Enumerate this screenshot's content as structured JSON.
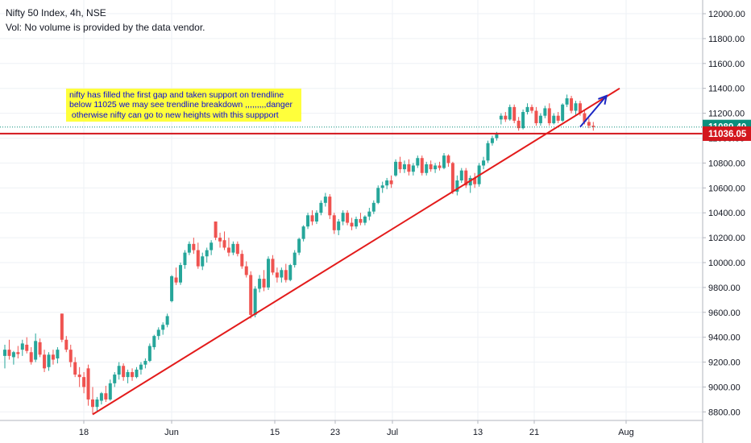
{
  "header": {
    "title": "Nifty 50 Index, 4h, NSE",
    "volume_note": "Vol: No volume is provided by the data vendor."
  },
  "annotation": {
    "text": "nifty has filled the first gap and taken support on trendline\nbelow 11025 we may see trendline breakdown ,,,,,,,,,danger\n otherwise nifty can go to new heights with this suppport",
    "background": "#ffff3b",
    "text_color": "#0a0ad6"
  },
  "price_labels": [
    {
      "value": 11089.4,
      "text": "11089.40",
      "color": "#0b8f7d"
    },
    {
      "value": 11036.05,
      "text": "11036.05",
      "color": "#d3161d"
    }
  ],
  "colors": {
    "up": "#26a69a",
    "down": "#ef5350",
    "trendline": "#e31b1b",
    "horizontal_line": "#d3161d",
    "arrow": "#1b27c4",
    "grid": "#eef1f5"
  },
  "chart_data": {
    "type": "candlestick",
    "title": "Nifty 50 Index, 4h, NSE",
    "ylim": [
      8700,
      12100
    ],
    "y_ticks": [
      "12000.00",
      "11800.00",
      "11600.00",
      "11400.00",
      "11200.00",
      "11000.00",
      "10800.00",
      "10600.00",
      "10400.00",
      "10200.00",
      "10000.00",
      "9800.00",
      "9600.00",
      "9400.00",
      "9200.00",
      "9000.00",
      "8800.00"
    ],
    "x_labels": [
      "18",
      "Jun",
      "15",
      "23",
      "Jul",
      "13",
      "21",
      "Aug"
    ],
    "grid": true,
    "candles": [
      {
        "o": 9250,
        "h": 9340,
        "l": 9150,
        "c": 9300
      },
      {
        "o": 9300,
        "h": 9380,
        "l": 9220,
        "c": 9250
      },
      {
        "o": 9240,
        "h": 9290,
        "l": 9180,
        "c": 9280
      },
      {
        "o": 9280,
        "h": 9330,
        "l": 9230,
        "c": 9265
      },
      {
        "o": 9300,
        "h": 9380,
        "l": 9250,
        "c": 9350
      },
      {
        "o": 9340,
        "h": 9400,
        "l": 9270,
        "c": 9290
      },
      {
        "o": 9280,
        "h": 9320,
        "l": 9180,
        "c": 9200
      },
      {
        "o": 9220,
        "h": 9430,
        "l": 9200,
        "c": 9370
      },
      {
        "o": 9360,
        "h": 9390,
        "l": 9240,
        "c": 9260
      },
      {
        "o": 9260,
        "h": 9300,
        "l": 9120,
        "c": 9150
      },
      {
        "o": 9160,
        "h": 9280,
        "l": 9130,
        "c": 9260
      },
      {
        "o": 9260,
        "h": 9300,
        "l": 9180,
        "c": 9220
      },
      {
        "o": 9230,
        "h": 9320,
        "l": 9190,
        "c": 9300
      },
      {
        "o": 9590,
        "h": 9590,
        "l": 9360,
        "c": 9380
      },
      {
        "o": 9380,
        "h": 9410,
        "l": 9280,
        "c": 9300
      },
      {
        "o": 9300,
        "h": 9340,
        "l": 9160,
        "c": 9200
      },
      {
        "o": 9200,
        "h": 9240,
        "l": 9080,
        "c": 9100
      },
      {
        "o": 9100,
        "h": 9160,
        "l": 9000,
        "c": 9080
      },
      {
        "o": 9080,
        "h": 9120,
        "l": 8950,
        "c": 9000
      },
      {
        "o": 9150,
        "h": 9180,
        "l": 8850,
        "c": 8900
      },
      {
        "o": 8900,
        "h": 9000,
        "l": 8780,
        "c": 8840
      },
      {
        "o": 8840,
        "h": 8920,
        "l": 8800,
        "c": 8900
      },
      {
        "o": 8890,
        "h": 8960,
        "l": 8860,
        "c": 8950
      },
      {
        "o": 8950,
        "h": 9010,
        "l": 8880,
        "c": 8900
      },
      {
        "o": 8900,
        "h": 9060,
        "l": 8890,
        "c": 9030
      },
      {
        "o": 9030,
        "h": 9120,
        "l": 9000,
        "c": 9100
      },
      {
        "o": 9100,
        "h": 9200,
        "l": 9060,
        "c": 9170
      },
      {
        "o": 9170,
        "h": 9190,
        "l": 9050,
        "c": 9080
      },
      {
        "o": 9080,
        "h": 9140,
        "l": 9030,
        "c": 9120
      },
      {
        "o": 9120,
        "h": 9150,
        "l": 9050,
        "c": 9080
      },
      {
        "o": 9080,
        "h": 9160,
        "l": 9070,
        "c": 9140
      },
      {
        "o": 9140,
        "h": 9200,
        "l": 9100,
        "c": 9180
      },
      {
        "o": 9180,
        "h": 9230,
        "l": 9150,
        "c": 9210
      },
      {
        "o": 9210,
        "h": 9350,
        "l": 9200,
        "c": 9330
      },
      {
        "o": 9320,
        "h": 9420,
        "l": 9300,
        "c": 9410
      },
      {
        "o": 9410,
        "h": 9480,
        "l": 9380,
        "c": 9460
      },
      {
        "o": 9460,
        "h": 9520,
        "l": 9420,
        "c": 9500
      },
      {
        "o": 9500,
        "h": 9590,
        "l": 9480,
        "c": 9570
      },
      {
        "o": 9690,
        "h": 9900,
        "l": 9680,
        "c": 9890
      },
      {
        "o": 9880,
        "h": 9960,
        "l": 9820,
        "c": 9840
      },
      {
        "o": 9840,
        "h": 10000,
        "l": 9820,
        "c": 9980
      },
      {
        "o": 9980,
        "h": 10100,
        "l": 9950,
        "c": 10080
      },
      {
        "o": 10080,
        "h": 10170,
        "l": 10060,
        "c": 10150
      },
      {
        "o": 10150,
        "h": 10200,
        "l": 10070,
        "c": 10100
      },
      {
        "o": 10100,
        "h": 10160,
        "l": 9950,
        "c": 9970
      },
      {
        "o": 9970,
        "h": 10080,
        "l": 9940,
        "c": 10050
      },
      {
        "o": 10050,
        "h": 10120,
        "l": 10000,
        "c": 10100
      },
      {
        "o": 10100,
        "h": 10180,
        "l": 10060,
        "c": 10160
      },
      {
        "o": 10330,
        "h": 10330,
        "l": 10180,
        "c": 10200
      },
      {
        "o": 10200,
        "h": 10240,
        "l": 10120,
        "c": 10170
      },
      {
        "o": 10180,
        "h": 10250,
        "l": 10100,
        "c": 10120
      },
      {
        "o": 10120,
        "h": 10200,
        "l": 10050,
        "c": 10080
      },
      {
        "o": 10080,
        "h": 10170,
        "l": 10060,
        "c": 10150
      },
      {
        "o": 10150,
        "h": 10170,
        "l": 10050,
        "c": 10070
      },
      {
        "o": 10070,
        "h": 10100,
        "l": 9950,
        "c": 9970
      },
      {
        "o": 9970,
        "h": 10010,
        "l": 9880,
        "c": 9900
      },
      {
        "o": 9900,
        "h": 9930,
        "l": 9550,
        "c": 9580
      },
      {
        "o": 9580,
        "h": 9810,
        "l": 9560,
        "c": 9790
      },
      {
        "o": 9790,
        "h": 9900,
        "l": 9760,
        "c": 9870
      },
      {
        "o": 9870,
        "h": 9940,
        "l": 9770,
        "c": 9800
      },
      {
        "o": 9800,
        "h": 10050,
        "l": 9780,
        "c": 10030
      },
      {
        "o": 10030,
        "h": 10060,
        "l": 9900,
        "c": 9920
      },
      {
        "o": 9920,
        "h": 9960,
        "l": 9840,
        "c": 9880
      },
      {
        "o": 9880,
        "h": 9960,
        "l": 9840,
        "c": 9940
      },
      {
        "o": 9940,
        "h": 9990,
        "l": 9840,
        "c": 9860
      },
      {
        "o": 9860,
        "h": 9990,
        "l": 9850,
        "c": 9980
      },
      {
        "o": 9980,
        "h": 10100,
        "l": 9960,
        "c": 10080
      },
      {
        "o": 10080,
        "h": 10200,
        "l": 10060,
        "c": 10190
      },
      {
        "o": 10190,
        "h": 10300,
        "l": 10170,
        "c": 10290
      },
      {
        "o": 10290,
        "h": 10400,
        "l": 10270,
        "c": 10380
      },
      {
        "o": 10380,
        "h": 10420,
        "l": 10300,
        "c": 10330
      },
      {
        "o": 10330,
        "h": 10420,
        "l": 10310,
        "c": 10400
      },
      {
        "o": 10400,
        "h": 10500,
        "l": 10380,
        "c": 10480
      },
      {
        "o": 10480,
        "h": 10560,
        "l": 10450,
        "c": 10530
      },
      {
        "o": 10530,
        "h": 10550,
        "l": 10350,
        "c": 10380
      },
      {
        "o": 10380,
        "h": 10400,
        "l": 10230,
        "c": 10260
      },
      {
        "o": 10260,
        "h": 10350,
        "l": 10220,
        "c": 10330
      },
      {
        "o": 10330,
        "h": 10420,
        "l": 10300,
        "c": 10400
      },
      {
        "o": 10400,
        "h": 10420,
        "l": 10300,
        "c": 10320
      },
      {
        "o": 10320,
        "h": 10360,
        "l": 10260,
        "c": 10290
      },
      {
        "o": 10290,
        "h": 10370,
        "l": 10270,
        "c": 10350
      },
      {
        "o": 10350,
        "h": 10400,
        "l": 10300,
        "c": 10320
      },
      {
        "o": 10320,
        "h": 10380,
        "l": 10300,
        "c": 10370
      },
      {
        "o": 10370,
        "h": 10440,
        "l": 10340,
        "c": 10410
      },
      {
        "o": 10410,
        "h": 10500,
        "l": 10390,
        "c": 10480
      },
      {
        "o": 10480,
        "h": 10620,
        "l": 10470,
        "c": 10600
      },
      {
        "o": 10600,
        "h": 10650,
        "l": 10560,
        "c": 10620
      },
      {
        "o": 10620,
        "h": 10680,
        "l": 10590,
        "c": 10660
      },
      {
        "o": 10660,
        "h": 10700,
        "l": 10600,
        "c": 10630
      },
      {
        "o": 10700,
        "h": 10830,
        "l": 10690,
        "c": 10810
      },
      {
        "o": 10810,
        "h": 10850,
        "l": 10720,
        "c": 10750
      },
      {
        "o": 10750,
        "h": 10820,
        "l": 10720,
        "c": 10790
      },
      {
        "o": 10790,
        "h": 10830,
        "l": 10700,
        "c": 10730
      },
      {
        "o": 10730,
        "h": 10800,
        "l": 10700,
        "c": 10780
      },
      {
        "o": 10780,
        "h": 10860,
        "l": 10760,
        "c": 10840
      },
      {
        "o": 10840,
        "h": 10860,
        "l": 10700,
        "c": 10720
      },
      {
        "o": 10720,
        "h": 10810,
        "l": 10700,
        "c": 10790
      },
      {
        "o": 10790,
        "h": 10820,
        "l": 10730,
        "c": 10750
      },
      {
        "o": 10750,
        "h": 10800,
        "l": 10720,
        "c": 10780
      },
      {
        "o": 10780,
        "h": 10810,
        "l": 10740,
        "c": 10760
      },
      {
        "o": 10760,
        "h": 10880,
        "l": 10750,
        "c": 10860
      },
      {
        "o": 10860,
        "h": 10870,
        "l": 10770,
        "c": 10800
      },
      {
        "o": 10800,
        "h": 10810,
        "l": 10550,
        "c": 10570
      },
      {
        "o": 10570,
        "h": 10700,
        "l": 10540,
        "c": 10660
      },
      {
        "o": 10660,
        "h": 10760,
        "l": 10640,
        "c": 10740
      },
      {
        "o": 10740,
        "h": 10760,
        "l": 10600,
        "c": 10620
      },
      {
        "o": 10620,
        "h": 10700,
        "l": 10560,
        "c": 10680
      },
      {
        "o": 10680,
        "h": 10720,
        "l": 10600,
        "c": 10630
      },
      {
        "o": 10630,
        "h": 10800,
        "l": 10610,
        "c": 10780
      },
      {
        "o": 10780,
        "h": 10850,
        "l": 10750,
        "c": 10820
      },
      {
        "o": 10820,
        "h": 10980,
        "l": 10800,
        "c": 10960
      },
      {
        "o": 10960,
        "h": 11020,
        "l": 10940,
        "c": 11000
      },
      {
        "o": 11000,
        "h": 11050,
        "l": 10980,
        "c": 11030
      },
      {
        "o": 11150,
        "h": 11200,
        "l": 11110,
        "c": 11180
      },
      {
        "o": 11180,
        "h": 11210,
        "l": 11130,
        "c": 11150
      },
      {
        "o": 11150,
        "h": 11270,
        "l": 11140,
        "c": 11250
      },
      {
        "o": 11250,
        "h": 11270,
        "l": 11120,
        "c": 11140
      },
      {
        "o": 11140,
        "h": 11170,
        "l": 11060,
        "c": 11080
      },
      {
        "o": 11080,
        "h": 11230,
        "l": 11070,
        "c": 11210
      },
      {
        "o": 11210,
        "h": 11280,
        "l": 11190,
        "c": 11250
      },
      {
        "o": 11250,
        "h": 11270,
        "l": 11200,
        "c": 11220
      },
      {
        "o": 11220,
        "h": 11250,
        "l": 11100,
        "c": 11120
      },
      {
        "o": 11120,
        "h": 11200,
        "l": 11100,
        "c": 11180
      },
      {
        "o": 11180,
        "h": 11260,
        "l": 11160,
        "c": 11240
      },
      {
        "o": 11240,
        "h": 11280,
        "l": 11100,
        "c": 11120
      },
      {
        "o": 11120,
        "h": 11200,
        "l": 11110,
        "c": 11180
      },
      {
        "o": 11180,
        "h": 11210,
        "l": 11120,
        "c": 11140
      },
      {
        "o": 11140,
        "h": 11280,
        "l": 11130,
        "c": 11270
      },
      {
        "o": 11270,
        "h": 11350,
        "l": 11250,
        "c": 11320
      },
      {
        "o": 11320,
        "h": 11340,
        "l": 11200,
        "c": 11220
      },
      {
        "o": 11220,
        "h": 11300,
        "l": 11180,
        "c": 11280
      },
      {
        "o": 11280,
        "h": 11300,
        "l": 11180,
        "c": 11200
      },
      {
        "o": 11200,
        "h": 11220,
        "l": 11110,
        "c": 11130
      },
      {
        "o": 11130,
        "h": 11160,
        "l": 11080,
        "c": 11100
      },
      {
        "o": 11100,
        "h": 11130,
        "l": 11060,
        "c": 11090
      }
    ],
    "drawings": {
      "trendline": {
        "from": {
          "candle": 20,
          "price": 8780
        },
        "to": {
          "candle": 140,
          "price": 11400
        }
      },
      "horizontal_line": {
        "price": 11036.05
      },
      "arrow": {
        "from": {
          "candle": 131,
          "price": 11090
        },
        "to": {
          "candle": 137,
          "price": 11340
        }
      }
    }
  }
}
